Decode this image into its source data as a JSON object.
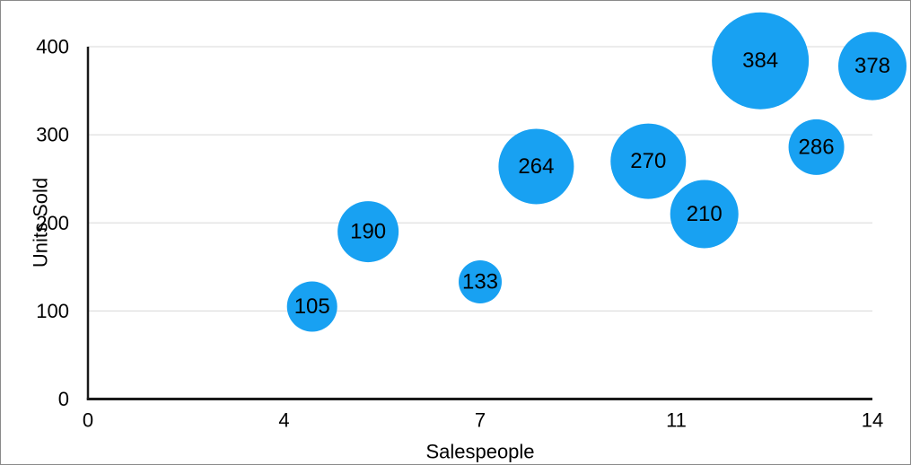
{
  "chart_data": {
    "type": "scatter",
    "subtype": "bubble",
    "title": "",
    "xlabel": "Salespeople",
    "ylabel": "Units Sold",
    "xlim": [
      0,
      14
    ],
    "ylim": [
      0,
      400
    ],
    "grid": "horizontal-only",
    "legend_position": "none",
    "x_ticks": [
      {
        "pos": 0,
        "label": "0"
      },
      {
        "pos": 3.5,
        "label": "4"
      },
      {
        "pos": 7,
        "label": "7"
      },
      {
        "pos": 10.5,
        "label": "11"
      },
      {
        "pos": 14,
        "label": "14"
      }
    ],
    "y_ticks": [
      {
        "pos": 0,
        "label": "0"
      },
      {
        "pos": 100,
        "label": "100"
      },
      {
        "pos": 200,
        "label": "200"
      },
      {
        "pos": 300,
        "label": "300"
      },
      {
        "pos": 400,
        "label": "400"
      }
    ],
    "series": [
      {
        "name": "Units Sold",
        "points": [
          {
            "x": 4,
            "y": 105,
            "label": "105",
            "radius_px": 28
          },
          {
            "x": 5,
            "y": 190,
            "label": "190",
            "radius_px": 34
          },
          {
            "x": 7,
            "y": 133,
            "label": "133",
            "radius_px": 24
          },
          {
            "x": 8,
            "y": 264,
            "label": "264",
            "radius_px": 42
          },
          {
            "x": 10,
            "y": 270,
            "label": "270",
            "radius_px": 42
          },
          {
            "x": 11,
            "y": 210,
            "label": "210",
            "radius_px": 38
          },
          {
            "x": 12,
            "y": 384,
            "label": "384",
            "radius_px": 54
          },
          {
            "x": 13,
            "y": 286,
            "label": "286",
            "radius_px": 31
          },
          {
            "x": 14,
            "y": 378,
            "label": "378",
            "radius_px": 38
          }
        ]
      }
    ],
    "colors": {
      "bubble_fill": "#18A1F2",
      "bubble_label": "#000000",
      "gridline": "#D8D8D8",
      "axis_line": "#1A1A1A",
      "tick_label": "#000000",
      "axis_title": "#000000",
      "background": "#FFFFFF",
      "frame_border": "#8A8A8A"
    }
  }
}
